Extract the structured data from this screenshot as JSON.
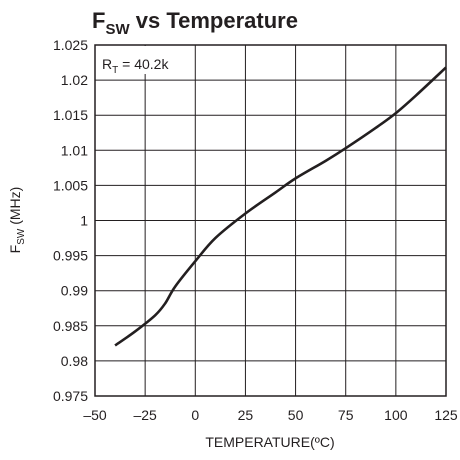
{
  "chart_data": {
    "type": "line",
    "title": {
      "main": "F",
      "sub": "SW",
      "rest": " vs Temperature"
    },
    "xlabel": "TEMPERATURE(ºC)",
    "ylabel": {
      "main": "F",
      "sub": "SW",
      "rest": " (MHz)"
    },
    "annotation": {
      "main": "R",
      "sub": "T",
      "rest": " = 40.2k"
    },
    "xlim": [
      -50,
      125
    ],
    "ylim": [
      0.975,
      1.025
    ],
    "x_ticks": [
      -50,
      -25,
      0,
      25,
      50,
      75,
      100,
      125
    ],
    "x_tick_labels": [
      "–50",
      "–25",
      "0",
      "25",
      "50",
      "75",
      "100",
      "125"
    ],
    "y_ticks": [
      0.975,
      0.98,
      0.985,
      0.99,
      0.995,
      1,
      1.005,
      1.01,
      1.015,
      1.02,
      1.025
    ],
    "y_tick_labels": [
      "0.975",
      "0.98",
      "0.985",
      "0.99",
      "0.995",
      "1",
      "1.005",
      "1.01",
      "1.015",
      "1.02",
      "1.025"
    ],
    "grid": true,
    "series": [
      {
        "x": [
          -40,
          -30,
          -20,
          -15,
          -10,
          0,
          10,
          25,
          40,
          50,
          65,
          75,
          90,
          100,
          110,
          125
        ],
        "y": [
          0.9822,
          0.9842,
          0.9865,
          0.9882,
          0.9906,
          0.9942,
          0.9975,
          1.001,
          1.004,
          1.006,
          1.0085,
          1.0103,
          1.0132,
          1.0153,
          1.0178,
          1.0218
        ]
      }
    ]
  }
}
